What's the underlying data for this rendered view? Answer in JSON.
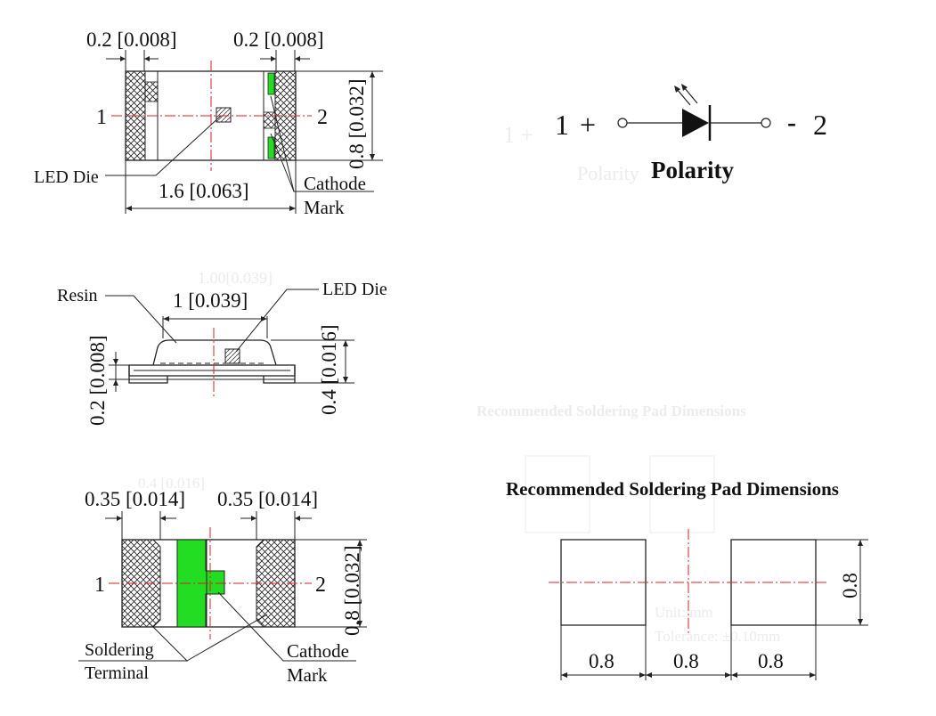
{
  "top_view": {
    "dim_left": "0.2 [0.008]",
    "dim_right": "0.2 [0.008]",
    "dim_width": "1.6 [0.063]",
    "dim_height": "0.8 [0.032]",
    "pin1": "1",
    "pin2": "2",
    "label_led_die": "LED Die",
    "label_cathode": "Cathode",
    "label_mark": "Mark"
  },
  "polarity": {
    "pin1": "1",
    "plus": "+",
    "minus": "-",
    "pin2": "2",
    "title": "Polarity"
  },
  "side_view": {
    "label_resin": "Resin",
    "label_led_die": "LED Die",
    "dim_top": "1 [0.039]",
    "dim_left": "0.2 [0.008]",
    "dim_right": "0.4 [0.016]"
  },
  "bottom_view": {
    "dim_left": "0.35 [0.014]",
    "dim_right": "0.35 [0.014]",
    "dim_height": "0.8 [0.032]",
    "pin1": "1",
    "pin2": "2",
    "label_soldering": "Soldering",
    "label_terminal": "Terminal",
    "label_cathode": "Cathode",
    "label_mark": "Mark"
  },
  "pad": {
    "title": "Recommended Soldering Pad Dimensions",
    "dim_1": "0.8",
    "dim_2": "0.8",
    "dim_3": "0.8",
    "dim_height": "0.8"
  },
  "colors": {
    "accent_green": "#22dd22",
    "centerline_red": "#d42020",
    "line": "#222222"
  }
}
